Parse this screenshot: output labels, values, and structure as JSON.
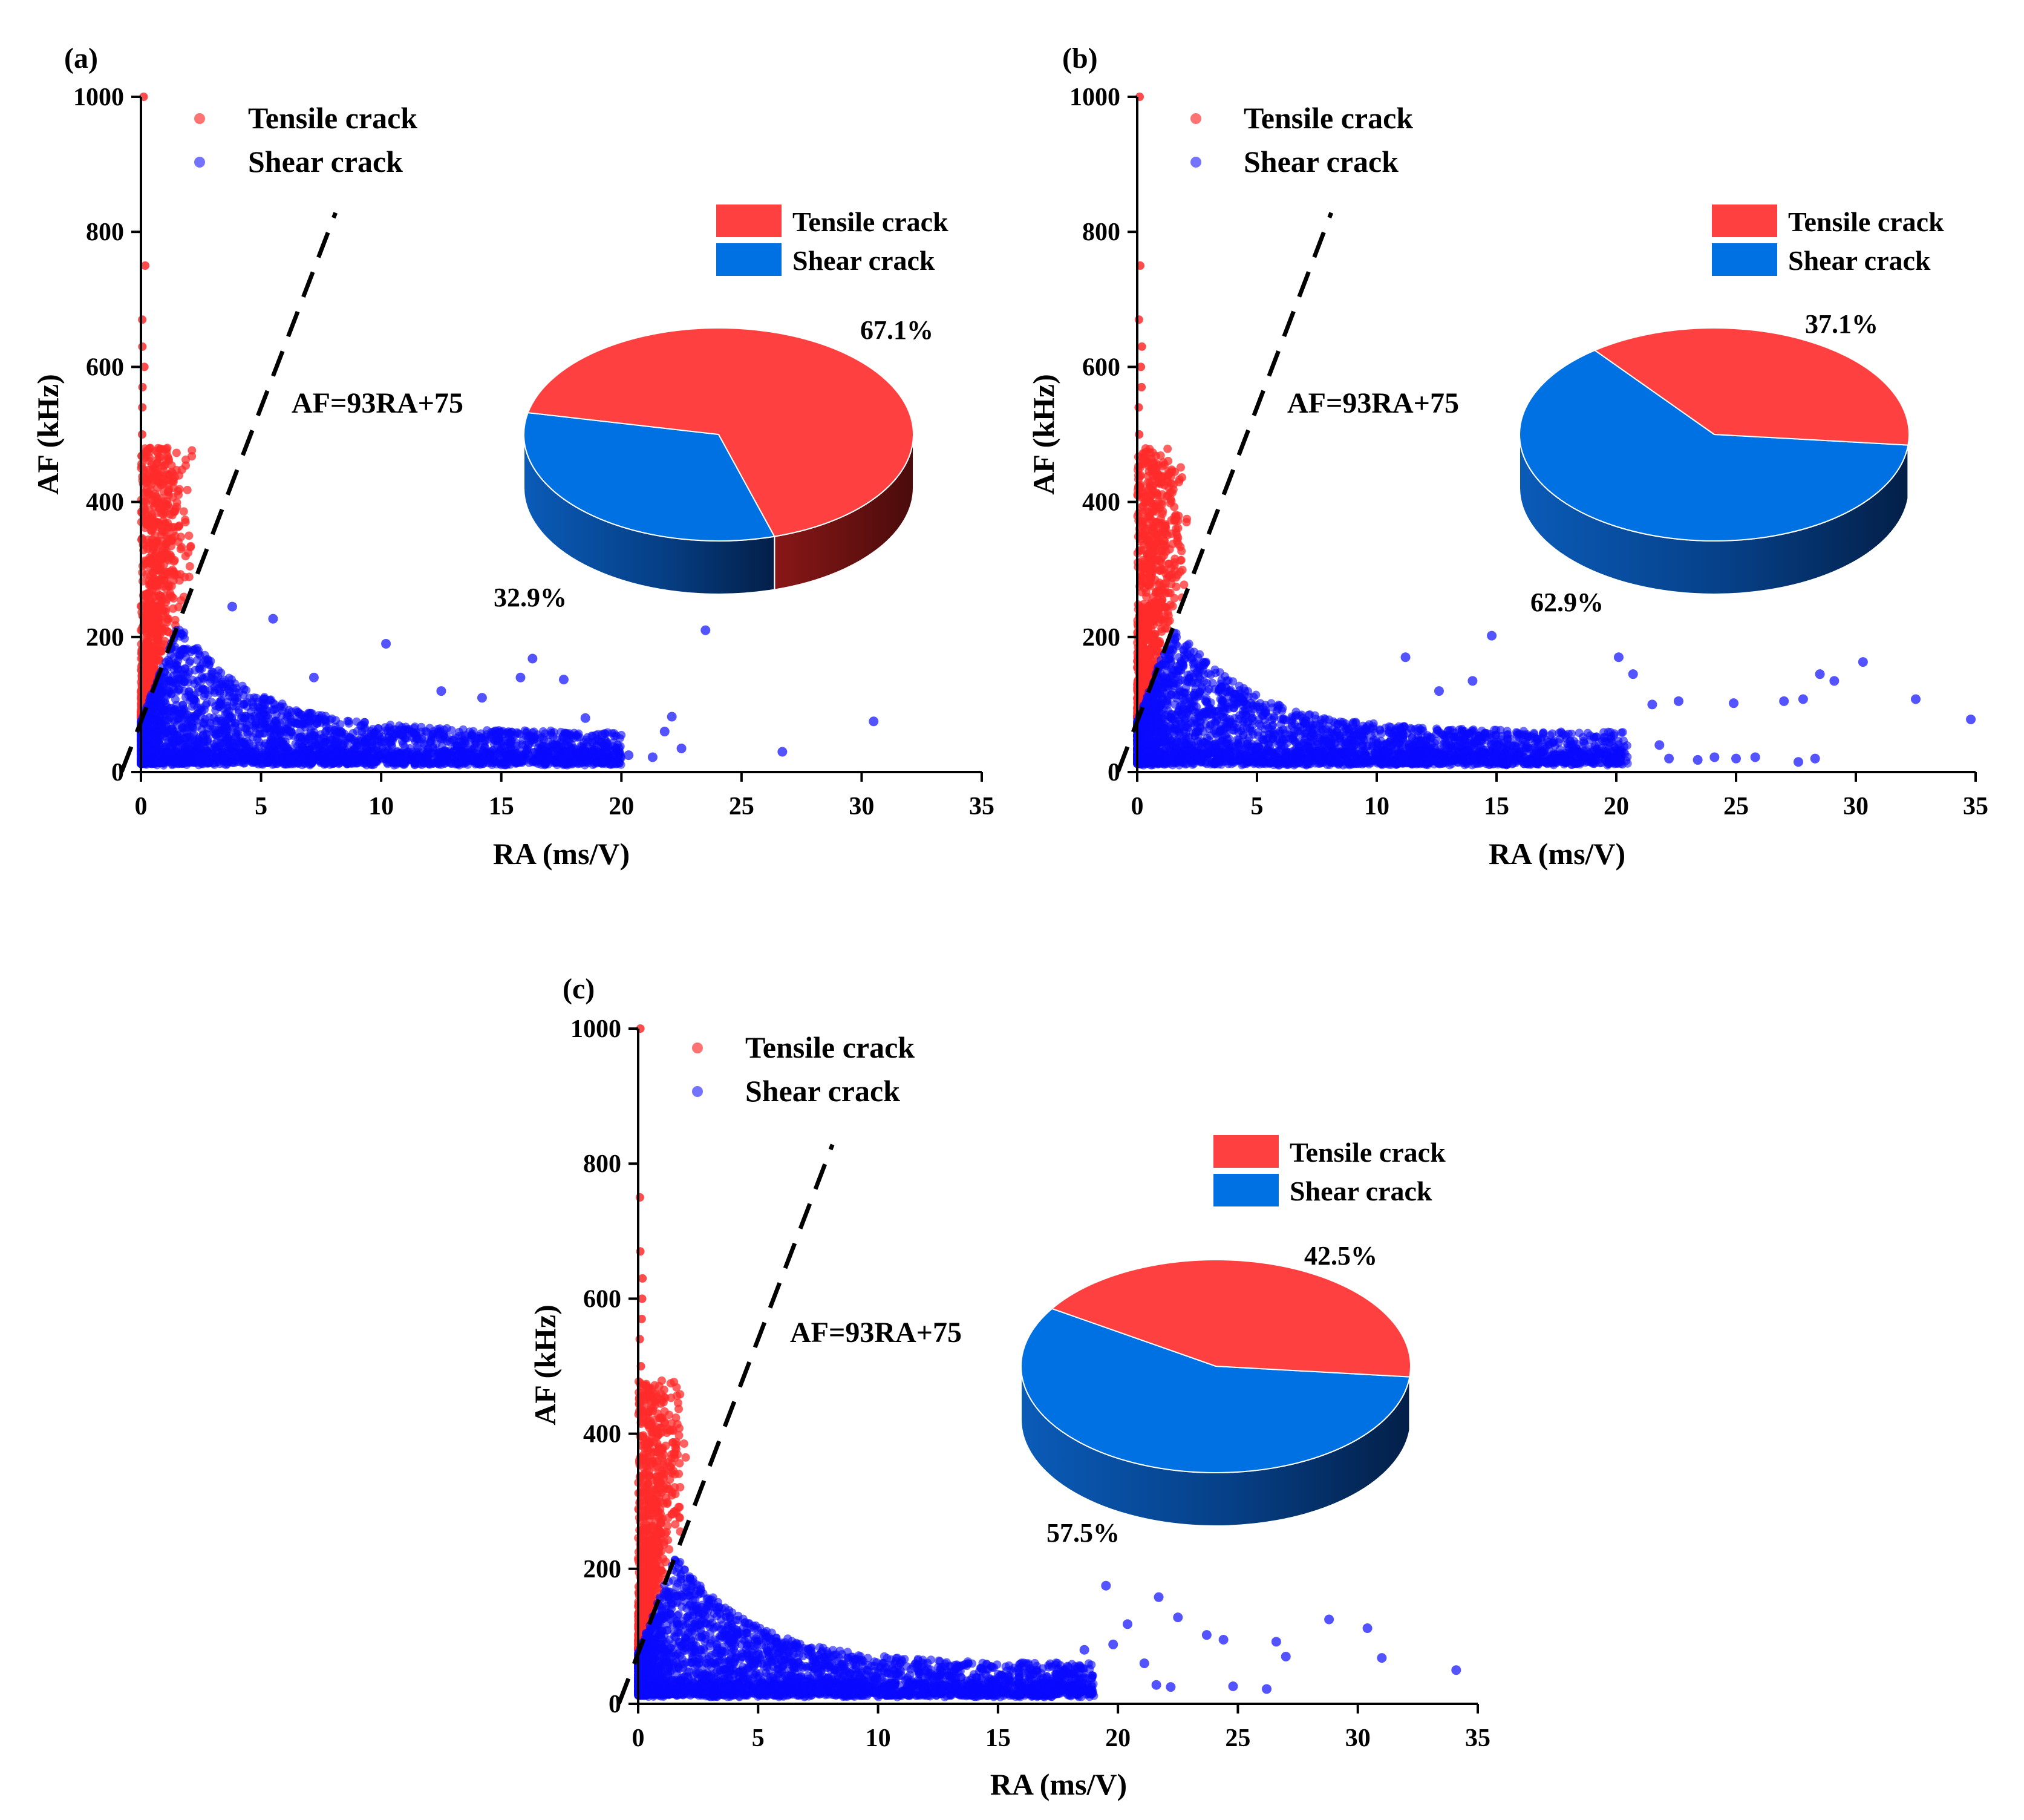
{
  "colors": {
    "tensile": "#ff2b2b",
    "shear": "#0a0aff",
    "tensile_pie": "#ff4040",
    "tensile_pie_side": "#6e1212",
    "shear_pie": "#0071e3",
    "shear_pie_side": "#063a7d",
    "line": "#000000"
  },
  "chart_data": [
    {
      "panel": "(a)",
      "type": "scatter",
      "xlabel": "RA (ms/V)",
      "ylabel": "AF (kHz)",
      "xlim": [
        0,
        35
      ],
      "ylim": [
        0,
        1000
      ],
      "xticks": [
        "0",
        "5",
        "10",
        "15",
        "20",
        "25",
        "30",
        "35"
      ],
      "yticks": [
        "0",
        "200",
        "400",
        "600",
        "800",
        "1000"
      ],
      "legend": [
        "Tensile crack",
        "Shear crack"
      ],
      "line_label": "AF=93RA+75",
      "line": {
        "slope": 93,
        "intercept": 75
      },
      "shear_tail_max": 20,
      "pie": {
        "legend": [
          "Tensile crack",
          "Shear crack"
        ],
        "slices": [
          {
            "name": "Tensile crack",
            "value": 67.1,
            "label": "67.1%"
          },
          {
            "name": "Shear crack",
            "value": 32.9,
            "label": "32.9%"
          }
        ]
      },
      "outliers": [
        {
          "x": 10.2,
          "y": 190
        },
        {
          "x": 23.5,
          "y": 210
        },
        {
          "x": 30.5,
          "y": 75
        },
        {
          "x": 26.7,
          "y": 30
        },
        {
          "x": 22.1,
          "y": 82
        },
        {
          "x": 16.3,
          "y": 168
        },
        {
          "x": 17.6,
          "y": 137
        },
        {
          "x": 3.8,
          "y": 245
        },
        {
          "x": 5.5,
          "y": 227
        },
        {
          "x": 15.8,
          "y": 140
        },
        {
          "x": 19.2,
          "y": 55
        },
        {
          "x": 22.5,
          "y": 35
        },
        {
          "x": 20.3,
          "y": 25
        },
        {
          "x": 21.8,
          "y": 60
        },
        {
          "x": 18.5,
          "y": 80
        },
        {
          "x": 12.5,
          "y": 120
        },
        {
          "x": 14.2,
          "y": 110
        },
        {
          "x": 7.2,
          "y": 140
        },
        {
          "x": 21.3,
          "y": 22
        },
        {
          "x": 17.8,
          "y": 30
        }
      ],
      "seed": 11
    },
    {
      "panel": "(b)",
      "type": "scatter",
      "xlabel": "RA (ms/V)",
      "ylabel": "AF (kHz)",
      "xlim": [
        0,
        35
      ],
      "ylim": [
        0,
        1000
      ],
      "xticks": [
        "0",
        "5",
        "10",
        "15",
        "20",
        "25",
        "30",
        "35"
      ],
      "yticks": [
        "0",
        "200",
        "400",
        "600",
        "800",
        "1000"
      ],
      "legend": [
        "Tensile crack",
        "Shear crack"
      ],
      "line_label": "AF=93RA+75",
      "line": {
        "slope": 93,
        "intercept": 75
      },
      "shear_tail_max": 20.5,
      "pie": {
        "legend": [
          "Tensile crack",
          "Shear crack"
        ],
        "slices": [
          {
            "name": "Tensile crack",
            "value": 37.1,
            "label": "37.1%"
          },
          {
            "name": "Shear crack",
            "value": 62.9,
            "label": "62.9%"
          }
        ]
      },
      "outliers": [
        {
          "x": 14.8,
          "y": 202
        },
        {
          "x": 20.1,
          "y": 170
        },
        {
          "x": 20.7,
          "y": 145
        },
        {
          "x": 30.3,
          "y": 163
        },
        {
          "x": 28.5,
          "y": 145
        },
        {
          "x": 29.1,
          "y": 135
        },
        {
          "x": 32.5,
          "y": 108
        },
        {
          "x": 34.8,
          "y": 78
        },
        {
          "x": 24.9,
          "y": 102
        },
        {
          "x": 27.0,
          "y": 105
        },
        {
          "x": 27.8,
          "y": 108
        },
        {
          "x": 21.5,
          "y": 100
        },
        {
          "x": 22.6,
          "y": 105
        },
        {
          "x": 23.4,
          "y": 18
        },
        {
          "x": 24.1,
          "y": 22
        },
        {
          "x": 25.0,
          "y": 20
        },
        {
          "x": 25.8,
          "y": 22
        },
        {
          "x": 27.6,
          "y": 15
        },
        {
          "x": 28.3,
          "y": 20
        },
        {
          "x": 21.8,
          "y": 40
        },
        {
          "x": 22.2,
          "y": 20
        },
        {
          "x": 11.2,
          "y": 170
        },
        {
          "x": 14.0,
          "y": 135
        },
        {
          "x": 12.6,
          "y": 120
        }
      ],
      "seed": 29
    },
    {
      "panel": "(c)",
      "type": "scatter",
      "xlabel": "RA (ms/V)",
      "ylabel": "AF (kHz)",
      "xlim": [
        0,
        35
      ],
      "ylim": [
        0,
        1000
      ],
      "xticks": [
        "0",
        "5",
        "10",
        "15",
        "20",
        "25",
        "30",
        "35"
      ],
      "yticks": [
        "0",
        "200",
        "400",
        "600",
        "800",
        "1000"
      ],
      "legend": [
        "Tensile crack",
        "Shear crack"
      ],
      "line_label": "AF=93RA+75",
      "line": {
        "slope": 93,
        "intercept": 75
      },
      "shear_tail_max": 19,
      "pie": {
        "legend": [
          "Tensile crack",
          "Shear crack"
        ],
        "slices": [
          {
            "name": "Tensile crack",
            "value": 42.5,
            "label": "42.5%"
          },
          {
            "name": "Shear crack",
            "value": 57.5,
            "label": "57.5%"
          }
        ]
      },
      "outliers": [
        {
          "x": 19.5,
          "y": 175
        },
        {
          "x": 21.7,
          "y": 158
        },
        {
          "x": 20.4,
          "y": 118
        },
        {
          "x": 22.5,
          "y": 128
        },
        {
          "x": 28.8,
          "y": 125
        },
        {
          "x": 30.4,
          "y": 112
        },
        {
          "x": 31.0,
          "y": 68
        },
        {
          "x": 34.1,
          "y": 50
        },
        {
          "x": 26.6,
          "y": 92
        },
        {
          "x": 27.0,
          "y": 70
        },
        {
          "x": 24.4,
          "y": 95
        },
        {
          "x": 23.7,
          "y": 102
        },
        {
          "x": 21.1,
          "y": 60
        },
        {
          "x": 19.8,
          "y": 88
        },
        {
          "x": 18.6,
          "y": 80
        },
        {
          "x": 24.8,
          "y": 26
        },
        {
          "x": 26.2,
          "y": 22
        },
        {
          "x": 22.2,
          "y": 25
        },
        {
          "x": 21.6,
          "y": 28
        },
        {
          "x": 17.9,
          "y": 55
        }
      ],
      "seed": 47
    }
  ]
}
